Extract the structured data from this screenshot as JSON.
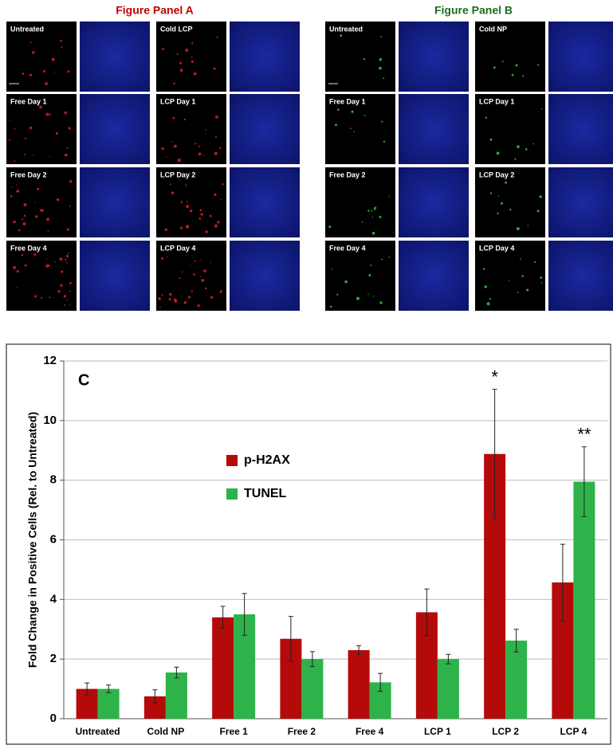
{
  "panels": [
    {
      "title": "Figure Panel A",
      "color": "#c00000",
      "labels": [
        "Untreated",
        "Cold LCP",
        "Free Day 1",
        "LCP Day 1",
        "Free Day 2",
        "LCP Day 2",
        "Free Day 4",
        "LCP Day 4"
      ]
    },
    {
      "title": "Figure Panel B",
      "color": "#1e6b1e",
      "labels": [
        "Untreated",
        "Cold NP",
        "Free Day 1",
        "LCP Day 1",
        "Free Day 2",
        "LCP Day 2",
        "Free Day 4",
        "LCP Day 4"
      ]
    }
  ],
  "chart_data": {
    "type": "bar",
    "panel_label": "C",
    "y_label": "Fold Change in Positive Cells (Rel. to Untreated)",
    "categories": [
      "Untreated",
      "Cold NP",
      "Free 1",
      "Free 2",
      "Free 4",
      "LCP 1",
      "LCP 2",
      "LCP 4"
    ],
    "series": [
      {
        "name": "p-H2AX",
        "color": "#b50a0a",
        "values": [
          1.0,
          0.75,
          3.4,
          2.68,
          2.3,
          3.57,
          8.88,
          4.57
        ],
        "errors": [
          0.2,
          0.22,
          0.37,
          0.75,
          0.15,
          0.78,
          2.17,
          1.28
        ]
      },
      {
        "name": "TUNEL",
        "color": "#2db34a",
        "values": [
          1.0,
          1.55,
          3.5,
          2.0,
          1.22,
          2.0,
          2.62,
          7.95
        ],
        "errors": [
          0.13,
          0.18,
          0.7,
          0.25,
          0.3,
          0.16,
          0.38,
          1.17
        ]
      }
    ],
    "annotations": [
      "*",
      "**"
    ],
    "ylim": [
      0,
      12
    ],
    "yticks": [
      0,
      2,
      4,
      6,
      8,
      10,
      12
    ],
    "grid": true,
    "legend": "center left"
  }
}
